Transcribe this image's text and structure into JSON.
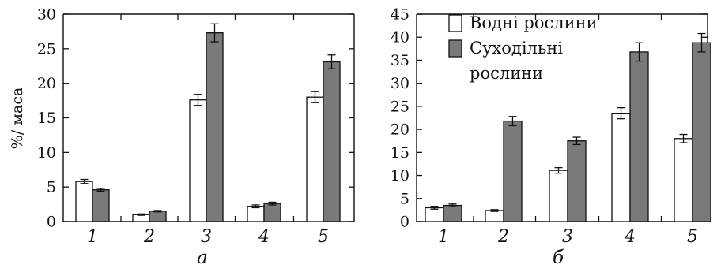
{
  "chart_data": [
    {
      "type": "bar",
      "panel_label": "а",
      "categories": [
        "1",
        "2",
        "3",
        "4",
        "5"
      ],
      "ylabel": "%/ маса",
      "ylim": [
        0,
        30
      ],
      "yticks": [
        0,
        5,
        10,
        15,
        20,
        25,
        30
      ],
      "series": [
        {
          "name": "Водні рослини",
          "color": "#ffffff",
          "values": [
            5.8,
            1.0,
            17.6,
            2.2,
            18.0
          ],
          "errors": [
            0.3,
            0.1,
            0.8,
            0.2,
            0.8
          ]
        },
        {
          "name": "Суходільні рослини",
          "color": "#7a7a7a",
          "values": [
            4.6,
            1.5,
            27.3,
            2.6,
            23.1
          ],
          "errors": [
            0.2,
            0.1,
            1.3,
            0.2,
            1.0
          ]
        }
      ]
    },
    {
      "type": "bar",
      "panel_label": "б",
      "categories": [
        "1",
        "2",
        "3",
        "4",
        "5"
      ],
      "ylabel": "",
      "ylim": [
        0,
        45
      ],
      "yticks": [
        0,
        5,
        10,
        15,
        20,
        25,
        30,
        35,
        40,
        45
      ],
      "legend": {
        "position": "top-left",
        "entries": [
          {
            "label": "Водні рослини",
            "color": "#ffffff"
          },
          {
            "label": "Суходільні",
            "label_line2": "рослини",
            "color": "#7a7a7a"
          }
        ]
      },
      "series": [
        {
          "name": "Водні рослини",
          "color": "#ffffff",
          "values": [
            3.0,
            2.4,
            11.1,
            23.5,
            18.0
          ],
          "errors": [
            0.3,
            0.2,
            0.6,
            1.2,
            0.9
          ]
        },
        {
          "name": "Суходільні рослини",
          "color": "#7a7a7a",
          "values": [
            3.5,
            21.8,
            17.5,
            36.8,
            38.8
          ],
          "errors": [
            0.3,
            1.0,
            0.8,
            2.0,
            2.0
          ]
        }
      ]
    }
  ]
}
